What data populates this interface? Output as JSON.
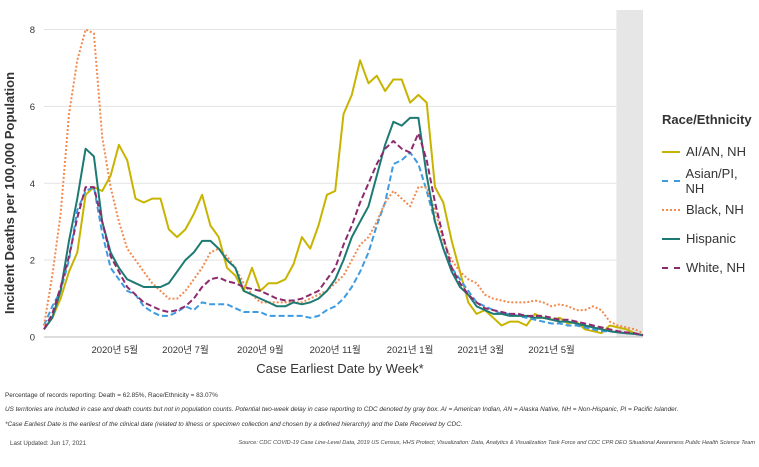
{
  "chart_data": {
    "type": "line",
    "xlabel": "Case Earliest Date by Week*",
    "ylabel": "Incident Deaths per 100,000 Population",
    "ylim": [
      0,
      8.3
    ],
    "yticks": [
      0,
      2,
      4,
      6,
      8
    ],
    "x_range_weeks": [
      0,
      72
    ],
    "x_ticks": [
      {
        "week": 8.5,
        "label": "2020년 5월"
      },
      {
        "week": 17,
        "label": "2020년 7월"
      },
      {
        "week": 26,
        "label": "2020년 9월"
      },
      {
        "week": 35,
        "label": "2020년 11월"
      },
      {
        "week": 44,
        "label": "2021년 1월"
      },
      {
        "week": 52.5,
        "label": "2021년 3월"
      },
      {
        "week": 61,
        "label": "2021년 5월"
      }
    ],
    "shaded_region_weeks": [
      68.8,
      72
    ],
    "grid": "horizontal",
    "legend_title": "Race/Ethnicity",
    "legend_position": "right",
    "series": [
      {
        "name": "AI/AN, NH",
        "color": "#c8b400",
        "style": "solid",
        "values": [
          0.2,
          0.5,
          1.0,
          1.7,
          2.2,
          3.7,
          3.9,
          3.8,
          4.2,
          5.0,
          4.6,
          3.6,
          3.5,
          3.6,
          3.6,
          2.8,
          2.6,
          2.8,
          3.2,
          3.7,
          2.9,
          2.6,
          1.8,
          1.6,
          1.2,
          1.8,
          1.2,
          1.4,
          1.4,
          1.5,
          1.9,
          2.6,
          2.3,
          2.9,
          3.7,
          3.8,
          5.8,
          6.3,
          7.2,
          6.6,
          6.8,
          6.4,
          6.7,
          6.7,
          6.1,
          6.3,
          6.1,
          3.9,
          3.5,
          2.5,
          1.7,
          0.9,
          0.6,
          0.7,
          0.5,
          0.3,
          0.4,
          0.4,
          0.3,
          0.6,
          0.5,
          0.45,
          0.5,
          0.35,
          0.4,
          0.2,
          0.15,
          0.1,
          0.3,
          0.25,
          0.2,
          0.1,
          0.05
        ]
      },
      {
        "name": "Asian/PI, NH",
        "color": "#3f9be0",
        "style": "dashed",
        "values": [
          0.3,
          0.8,
          1.2,
          2.0,
          3.3,
          3.8,
          3.9,
          2.7,
          1.8,
          1.5,
          1.2,
          1.1,
          0.8,
          0.65,
          0.55,
          0.55,
          0.65,
          0.8,
          0.7,
          0.9,
          0.85,
          0.85,
          0.85,
          0.75,
          0.65,
          0.65,
          0.65,
          0.55,
          0.55,
          0.55,
          0.55,
          0.55,
          0.5,
          0.55,
          0.7,
          0.8,
          1.0,
          1.3,
          1.7,
          2.2,
          2.9,
          3.5,
          4.5,
          4.6,
          4.8,
          4.5,
          3.8,
          3.0,
          2.3,
          1.8,
          1.5,
          1.2,
          0.9,
          0.8,
          0.7,
          0.6,
          0.6,
          0.55,
          0.5,
          0.45,
          0.4,
          0.35,
          0.35,
          0.3,
          0.3,
          0.25,
          0.2,
          0.15,
          0.15,
          0.12,
          0.1,
          0.08,
          0.05
        ]
      },
      {
        "name": "Black, NH",
        "color": "#f28a50",
        "style": "dotted",
        "values": [
          0.3,
          1.6,
          3.2,
          5.8,
          7.2,
          8.0,
          7.9,
          5.2,
          3.9,
          3.0,
          2.3,
          2.0,
          1.7,
          1.4,
          1.2,
          1.0,
          1.0,
          1.2,
          1.5,
          1.8,
          2.2,
          2.3,
          2.1,
          1.8,
          1.4,
          1.1,
          0.9,
          0.9,
          0.9,
          0.9,
          0.9,
          0.9,
          1.0,
          1.1,
          1.2,
          1.4,
          1.6,
          2.0,
          2.4,
          2.6,
          3.0,
          3.5,
          3.8,
          3.6,
          3.4,
          3.9,
          3.9,
          3.3,
          2.5,
          2.0,
          1.7,
          1.5,
          1.4,
          1.1,
          1.0,
          0.95,
          0.9,
          0.9,
          0.9,
          0.95,
          0.9,
          0.8,
          0.85,
          0.8,
          0.7,
          0.7,
          0.8,
          0.7,
          0.4,
          0.3,
          0.25,
          0.2,
          0.1
        ]
      },
      {
        "name": "Hispanic",
        "color": "#1d7a73",
        "style": "solid",
        "values": [
          0.2,
          0.5,
          1.2,
          2.5,
          3.6,
          4.9,
          4.7,
          3.0,
          2.2,
          1.8,
          1.5,
          1.4,
          1.3,
          1.3,
          1.3,
          1.4,
          1.7,
          2.0,
          2.2,
          2.5,
          2.5,
          2.3,
          2.0,
          1.8,
          1.2,
          1.1,
          1.0,
          0.9,
          0.8,
          0.8,
          0.9,
          0.85,
          0.9,
          1.0,
          1.2,
          1.5,
          2.0,
          2.6,
          3.0,
          3.4,
          4.2,
          5.0,
          5.6,
          5.5,
          5.7,
          5.7,
          4.2,
          3.0,
          2.3,
          1.7,
          1.3,
          1.1,
          0.8,
          0.7,
          0.6,
          0.6,
          0.55,
          0.55,
          0.55,
          0.5,
          0.5,
          0.45,
          0.4,
          0.4,
          0.35,
          0.3,
          0.25,
          0.2,
          0.15,
          0.12,
          0.1,
          0.08,
          0.05
        ]
      },
      {
        "name": "White, NH",
        "color": "#8c2a6e",
        "style": "dashed",
        "values": [
          0.2,
          0.6,
          1.3,
          2.1,
          3.1,
          3.9,
          3.9,
          3.0,
          2.1,
          1.7,
          1.3,
          1.1,
          0.9,
          0.8,
          0.7,
          0.65,
          0.7,
          0.8,
          1.0,
          1.3,
          1.5,
          1.55,
          1.45,
          1.4,
          1.3,
          1.25,
          1.2,
          1.1,
          1.0,
          0.95,
          0.95,
          1.0,
          1.1,
          1.2,
          1.5,
          1.8,
          2.4,
          2.9,
          3.5,
          4.0,
          4.5,
          4.9,
          5.1,
          4.9,
          4.8,
          5.3,
          4.6,
          3.5,
          2.6,
          1.8,
          1.4,
          1.1,
          0.9,
          0.75,
          0.7,
          0.65,
          0.6,
          0.6,
          0.55,
          0.55,
          0.55,
          0.5,
          0.45,
          0.45,
          0.4,
          0.35,
          0.3,
          0.25,
          0.2,
          0.15,
          0.12,
          0.1,
          0.05
        ]
      }
    ]
  },
  "notes": {
    "line1": "Percentage of records reporting: Death = 62.85%, Race/Ethnicity = 83.07%",
    "line2": "US territories are included in case and death counts but not in population counts. Potential two-week delay in case reporting to CDC denoted by gray box. AI = American Indian, AN = Alaska Native, NH = Non-Hispanic, PI = Pacific Islander.",
    "line3": "*Case Earliest Date is the earliest of the clinical date (related to illness or specimen collection and chosen by a defined hierarchy) and the Date Received by CDC."
  },
  "footer": {
    "last_updated": "Last Updated: Jun 17, 2021",
    "source": "Source: CDC COVID-19 Case Line-Level Data, 2019 US Census, HHS Protect; Visualization: Data, Analytics & Visualization Task Force and CDC CPR DEO Situational Awareness Public Health Science Team"
  }
}
